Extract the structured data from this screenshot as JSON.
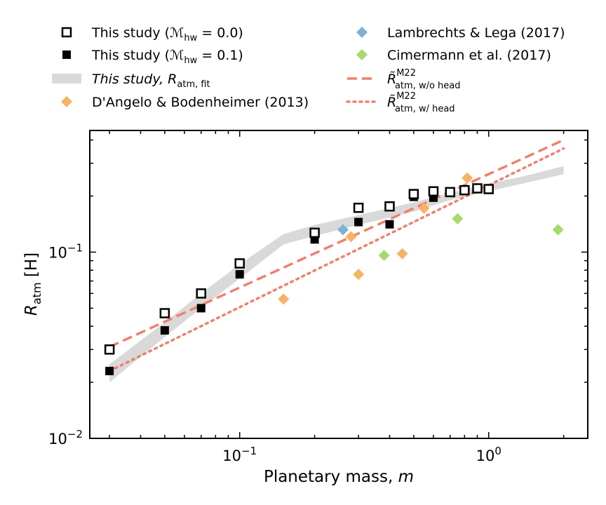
{
  "chart_data": {
    "type": "scatter",
    "xscale": "log",
    "yscale": "log",
    "xlim": [
      0.025,
      2.5
    ],
    "ylim": [
      0.01,
      0.45
    ],
    "xlabel": "Planetary mass, ",
    "xlabel_var": "m",
    "ylabel_main": "R",
    "ylabel_sub": "atm",
    "ylabel_unit": " [H]",
    "x_ticks": [
      {
        "value": 0.1,
        "base": "10",
        "exp": "−1"
      },
      {
        "value": 1.0,
        "base": "10",
        "exp": "0"
      }
    ],
    "y_ticks": [
      {
        "value": 0.01,
        "base": "10",
        "exp": "−2"
      },
      {
        "value": 0.1,
        "base": "10",
        "exp": "−1"
      }
    ],
    "legend": {
      "placement": "above plot, two columns",
      "entries": [
        {
          "id": "open",
          "text": "This study (ℳ",
          "sub": "hw",
          "tail": " = 0.0)"
        },
        {
          "id": "filled",
          "text": "This study (ℳ",
          "sub": "hw",
          "tail": " = 0.1)"
        },
        {
          "id": "band",
          "text": "This study, R",
          "sub": "atm, fit",
          "tail": ""
        },
        {
          "id": "dangelo",
          "text": "D'Angelo & Bodenheimer (2013)",
          "sub": "",
          "tail": ""
        },
        {
          "id": "lambrechts",
          "text": "Lambrechts & Lega (2017)",
          "sub": "",
          "tail": ""
        },
        {
          "id": "cimermann",
          "text": "Cimermann et al. (2017)",
          "sub": "",
          "tail": ""
        },
        {
          "id": "dashed",
          "text": "R̃",
          "sup": "M22",
          "sub": "atm, w/o head",
          "tail": ""
        },
        {
          "id": "dotted",
          "text": "R̃",
          "sup": "M22",
          "sub": "atm, w/ head",
          "tail": ""
        }
      ]
    },
    "series": [
      {
        "name": "This study (M_hw = 0.0)",
        "marker": "open-square",
        "color": "#000000",
        "x": [
          0.03,
          0.05,
          0.07,
          0.1,
          0.2,
          0.3,
          0.4,
          0.5,
          0.6,
          0.7,
          0.8,
          0.9,
          1.0
        ],
        "y": [
          0.03,
          0.047,
          0.06,
          0.087,
          0.127,
          0.173,
          0.176,
          0.205,
          0.212,
          0.21,
          0.215,
          0.22,
          0.218
        ]
      },
      {
        "name": "This study (M_hw = 0.1)",
        "marker": "filled-square",
        "color": "#000000",
        "x": [
          0.03,
          0.05,
          0.07,
          0.1,
          0.2,
          0.3,
          0.4,
          0.5,
          0.6
        ],
        "y": [
          0.023,
          0.038,
          0.05,
          0.076,
          0.117,
          0.145,
          0.141,
          0.198,
          0.196
        ]
      },
      {
        "name": "This study, R_atm,fit",
        "marker": "band",
        "color": "#d9d9d9",
        "x": [
          0.03,
          0.05,
          0.07,
          0.1,
          0.15,
          0.2,
          0.3,
          0.5,
          0.7,
          1.0,
          1.5,
          2.0
        ],
        "y_low": [
          0.02,
          0.035,
          0.05,
          0.072,
          0.11,
          0.122,
          0.14,
          0.165,
          0.19,
          0.212,
          0.24,
          0.262
        ],
        "y_high": [
          0.025,
          0.042,
          0.06,
          0.086,
          0.125,
          0.14,
          0.158,
          0.185,
          0.208,
          0.233,
          0.262,
          0.29
        ]
      },
      {
        "name": "D'Angelo & Bodenheimer (2013)",
        "marker": "diamond",
        "color": "#f8b264",
        "x": [
          0.15,
          0.28,
          0.3,
          0.45,
          0.55,
          0.82
        ],
        "y": [
          0.056,
          0.121,
          0.076,
          0.098,
          0.172,
          0.25
        ]
      },
      {
        "name": "Lambrechts & Lega (2017)",
        "marker": "diamond",
        "color": "#7fb1d4",
        "x": [
          0.26
        ],
        "y": [
          0.132
        ]
      },
      {
        "name": "Cimermann et al. (2017)",
        "marker": "diamond",
        "color": "#a9d86e",
        "x": [
          0.38,
          0.75,
          1.9
        ],
        "y": [
          0.096,
          0.151,
          0.132
        ]
      },
      {
        "name": "R_atm,w/o head (M22)",
        "marker": "dashed-line",
        "color": "#f08070",
        "x": [
          0.03,
          2.0
        ],
        "y": [
          0.031,
          0.4
        ]
      },
      {
        "name": "R_atm,w/ head (M22)",
        "marker": "dotted-line",
        "color": "#f08070",
        "x": [
          0.03,
          2.0
        ],
        "y": [
          0.023,
          0.36
        ]
      }
    ]
  }
}
